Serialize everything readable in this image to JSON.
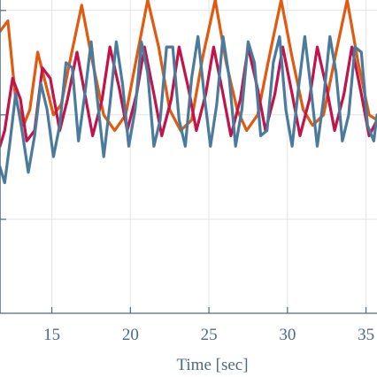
{
  "chart_data": {
    "type": "line",
    "title": "",
    "xlabel": "Time [sec]",
    "ylabel": "",
    "xlim": [
      11.7,
      35.7
    ],
    "ylim": [
      -3.8,
      2.2
    ],
    "x_ticks": [
      15,
      20,
      25,
      30,
      35
    ],
    "x_tick_labels": [
      "15",
      "20",
      "25",
      "30",
      "35"
    ],
    "y_gridlines": [
      -2,
      0,
      2
    ],
    "grid": true,
    "legend": "none",
    "series": [
      {
        "color": "#e05a10",
        "points": [
          [
            11.7,
            1.6
          ],
          [
            12.2,
            1.8
          ],
          [
            12.7,
            0.3
          ],
          [
            13.2,
            -0.2
          ],
          [
            13.6,
            0.1
          ],
          [
            14.1,
            1.2
          ],
          [
            14.6,
            0.6
          ],
          [
            15.1,
            0.0
          ],
          [
            15.6,
            0.2
          ],
          [
            16.2,
            1.1
          ],
          [
            16.9,
            2.1
          ],
          [
            17.6,
            1.0
          ],
          [
            18.3,
            0.0
          ],
          [
            19.0,
            -0.3
          ],
          [
            19.7,
            0.0
          ],
          [
            20.4,
            1.1
          ],
          [
            21.1,
            2.2
          ],
          [
            21.8,
            1.3
          ],
          [
            22.5,
            0.1
          ],
          [
            23.2,
            -0.3
          ],
          [
            23.9,
            -0.1
          ],
          [
            24.6,
            1.1
          ],
          [
            25.4,
            2.2
          ],
          [
            26.1,
            1.0
          ],
          [
            26.8,
            0.1
          ],
          [
            27.4,
            -0.3
          ],
          [
            28.1,
            0.0
          ],
          [
            28.9,
            1.2
          ],
          [
            29.6,
            2.2
          ],
          [
            30.3,
            1.1
          ],
          [
            31.0,
            0.1
          ],
          [
            31.6,
            -0.2
          ],
          [
            32.3,
            0.0
          ],
          [
            33.1,
            1.2
          ],
          [
            33.8,
            2.2
          ],
          [
            34.5,
            1.0
          ],
          [
            35.2,
            0.0
          ],
          [
            35.7,
            -0.1
          ]
        ]
      },
      {
        "color": "#c0144b",
        "points": [
          [
            11.7,
            -0.6
          ],
          [
            12.0,
            -0.3
          ],
          [
            12.5,
            0.7
          ],
          [
            13.0,
            0.3
          ],
          [
            13.4,
            -0.5
          ],
          [
            13.9,
            -0.3
          ],
          [
            14.4,
            0.9
          ],
          [
            14.9,
            0.7
          ],
          [
            15.5,
            -0.3
          ],
          [
            16.0,
            0.3
          ],
          [
            16.6,
            1.2
          ],
          [
            17.1,
            0.4
          ],
          [
            17.6,
            -0.4
          ],
          [
            18.2,
            0.3
          ],
          [
            18.7,
            1.3
          ],
          [
            19.3,
            0.5
          ],
          [
            19.8,
            -0.3
          ],
          [
            20.4,
            0.4
          ],
          [
            20.9,
            1.3
          ],
          [
            21.5,
            0.4
          ],
          [
            22.0,
            -0.4
          ],
          [
            22.6,
            0.3
          ],
          [
            23.1,
            1.3
          ],
          [
            23.7,
            0.5
          ],
          [
            24.2,
            -0.3
          ],
          [
            24.8,
            0.4
          ],
          [
            25.3,
            1.3
          ],
          [
            25.9,
            0.4
          ],
          [
            26.4,
            -0.4
          ],
          [
            27.0,
            0.3
          ],
          [
            27.5,
            1.3
          ],
          [
            28.1,
            0.5
          ],
          [
            28.6,
            -0.3
          ],
          [
            29.2,
            0.4
          ],
          [
            29.7,
            1.3
          ],
          [
            30.3,
            0.4
          ],
          [
            30.8,
            -0.4
          ],
          [
            31.4,
            0.3
          ],
          [
            31.9,
            1.3
          ],
          [
            32.5,
            0.5
          ],
          [
            33.0,
            -0.3
          ],
          [
            33.6,
            0.4
          ],
          [
            34.1,
            1.3
          ],
          [
            34.7,
            0.4
          ],
          [
            35.2,
            -0.4
          ],
          [
            35.7,
            -0.1
          ]
        ]
      },
      {
        "color": "#4a7b9d",
        "points": [
          [
            11.7,
            -1.0
          ],
          [
            12.0,
            -1.3
          ],
          [
            12.3,
            -0.6
          ],
          [
            12.7,
            0.4
          ],
          [
            13.1,
            -0.3
          ],
          [
            13.5,
            -1.1
          ],
          [
            13.9,
            -0.4
          ],
          [
            14.3,
            0.6
          ],
          [
            14.7,
            0.1
          ],
          [
            15.1,
            -0.8
          ],
          [
            15.5,
            -0.2
          ],
          [
            15.9,
            1.0
          ],
          [
            16.3,
            0.9
          ],
          [
            16.7,
            -0.5
          ],
          [
            17.1,
            0.4
          ],
          [
            17.5,
            1.4
          ],
          [
            17.9,
            0.3
          ],
          [
            18.3,
            -0.8
          ],
          [
            18.7,
            0.2
          ],
          [
            19.1,
            1.4
          ],
          [
            19.5,
            0.6
          ],
          [
            19.9,
            -0.6
          ],
          [
            20.3,
            0.1
          ],
          [
            20.7,
            1.4
          ],
          [
            21.1,
            0.8
          ],
          [
            21.5,
            -0.6
          ],
          [
            21.9,
            -0.1
          ],
          [
            22.3,
            1.3
          ],
          [
            22.7,
            1.3
          ],
          [
            23.1,
            -0.1
          ],
          [
            23.5,
            -0.6
          ],
          [
            23.9,
            0.7
          ],
          [
            24.3,
            1.5
          ],
          [
            24.7,
            0.4
          ],
          [
            25.1,
            -0.6
          ],
          [
            25.5,
            0.2
          ],
          [
            25.9,
            1.5
          ],
          [
            26.3,
            0.7
          ],
          [
            26.7,
            -0.6
          ],
          [
            27.1,
            0.1
          ],
          [
            27.5,
            1.4
          ],
          [
            27.9,
            1.0
          ],
          [
            28.3,
            -0.4
          ],
          [
            28.7,
            -0.3
          ],
          [
            29.1,
            1.0
          ],
          [
            29.5,
            1.5
          ],
          [
            29.9,
            0.1
          ],
          [
            30.3,
            -0.6
          ],
          [
            30.7,
            0.5
          ],
          [
            31.1,
            1.5
          ],
          [
            31.5,
            0.5
          ],
          [
            31.9,
            -0.6
          ],
          [
            32.3,
            0.3
          ],
          [
            32.7,
            1.5
          ],
          [
            33.1,
            0.8
          ],
          [
            33.5,
            -0.5
          ],
          [
            33.9,
            0.0
          ],
          [
            34.3,
            1.3
          ],
          [
            34.7,
            1.2
          ],
          [
            35.1,
            -0.2
          ],
          [
            35.5,
            -0.5
          ],
          [
            35.7,
            0.0
          ]
        ]
      }
    ]
  }
}
